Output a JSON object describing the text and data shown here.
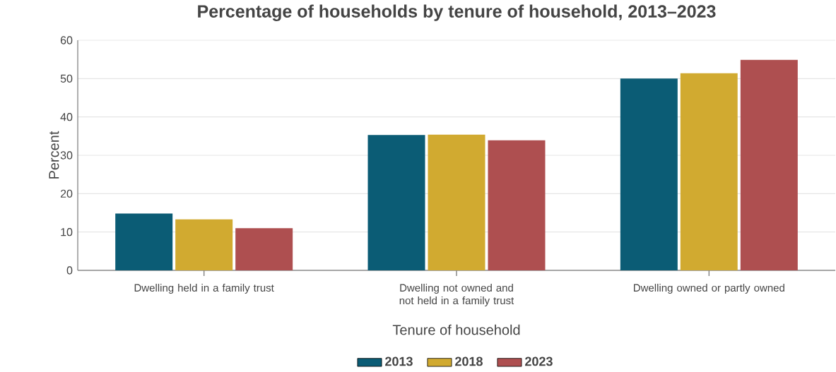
{
  "chart_data": {
    "type": "bar",
    "title": "Percentage of households by tenure of household, 2013–2023",
    "xlabel": "Tenure of household",
    "ylabel": "Percent",
    "categories": [
      "Dwelling held in a family trust",
      "Dwelling not owned and not held in a family trust",
      "Dwelling owned or partly owned"
    ],
    "series": [
      {
        "name": "2013",
        "color": "#0b5c75",
        "values": [
          14.8,
          35.3,
          50.0
        ]
      },
      {
        "name": "2018",
        "color": "#d1aa30",
        "values": [
          13.3,
          35.4,
          51.4
        ]
      },
      {
        "name": "2023",
        "color": "#ae4f50",
        "values": [
          11.0,
          33.9,
          54.9
        ]
      }
    ],
    "ylim": [
      0,
      60
    ],
    "yticks": [
      0,
      10,
      20,
      30,
      40,
      50,
      60
    ],
    "grid": "y",
    "legend": "bottom"
  }
}
